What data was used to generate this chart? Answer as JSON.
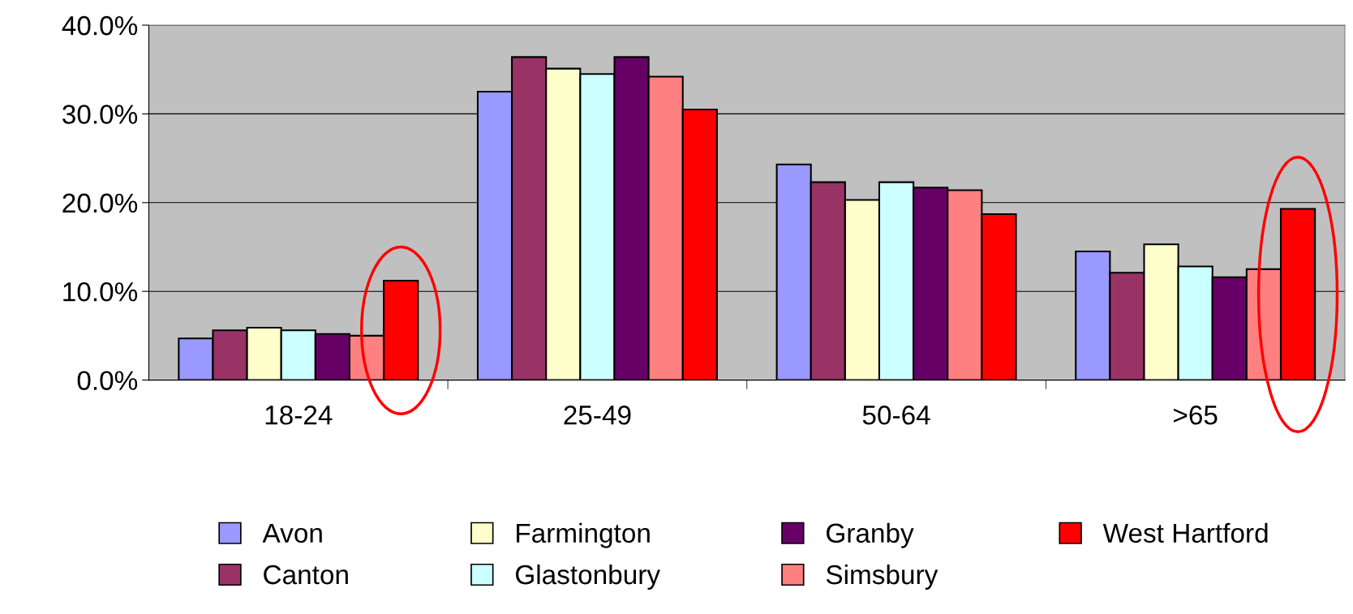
{
  "chart_data": {
    "type": "bar",
    "categories": [
      "18-24",
      "25-49",
      "50-64",
      ">65"
    ],
    "series": [
      {
        "name": "Avon",
        "color": "#9999ff",
        "values": [
          4.7,
          32.5,
          24.3,
          14.5
        ]
      },
      {
        "name": "Canton",
        "color": "#993366",
        "values": [
          5.6,
          36.4,
          22.3,
          12.1
        ]
      },
      {
        "name": "Farmington",
        "color": "#ffffcc",
        "values": [
          5.9,
          35.1,
          20.3,
          15.3
        ]
      },
      {
        "name": "Glastonbury",
        "color": "#ccffff",
        "values": [
          5.6,
          34.5,
          22.3,
          12.8
        ]
      },
      {
        "name": "Granby",
        "color": "#660066",
        "values": [
          5.2,
          36.4,
          21.7,
          11.6
        ]
      },
      {
        "name": "Simsbury",
        "color": "#ff8080",
        "values": [
          5.0,
          34.2,
          21.4,
          12.5
        ]
      },
      {
        "name": "West Hartford",
        "color": "#ff0000",
        "values": [
          11.2,
          30.5,
          18.7,
          19.3
        ]
      }
    ],
    "ylim": [
      0,
      40
    ],
    "yticks": [
      {
        "value": 0,
        "label": "0.0%"
      },
      {
        "value": 10,
        "label": "10.0%"
      },
      {
        "value": 20,
        "label": "20.0%"
      },
      {
        "value": 30,
        "label": "30.0%"
      },
      {
        "value": 40,
        "label": "40.0%"
      }
    ],
    "grid": "y",
    "legend": "bottom"
  }
}
